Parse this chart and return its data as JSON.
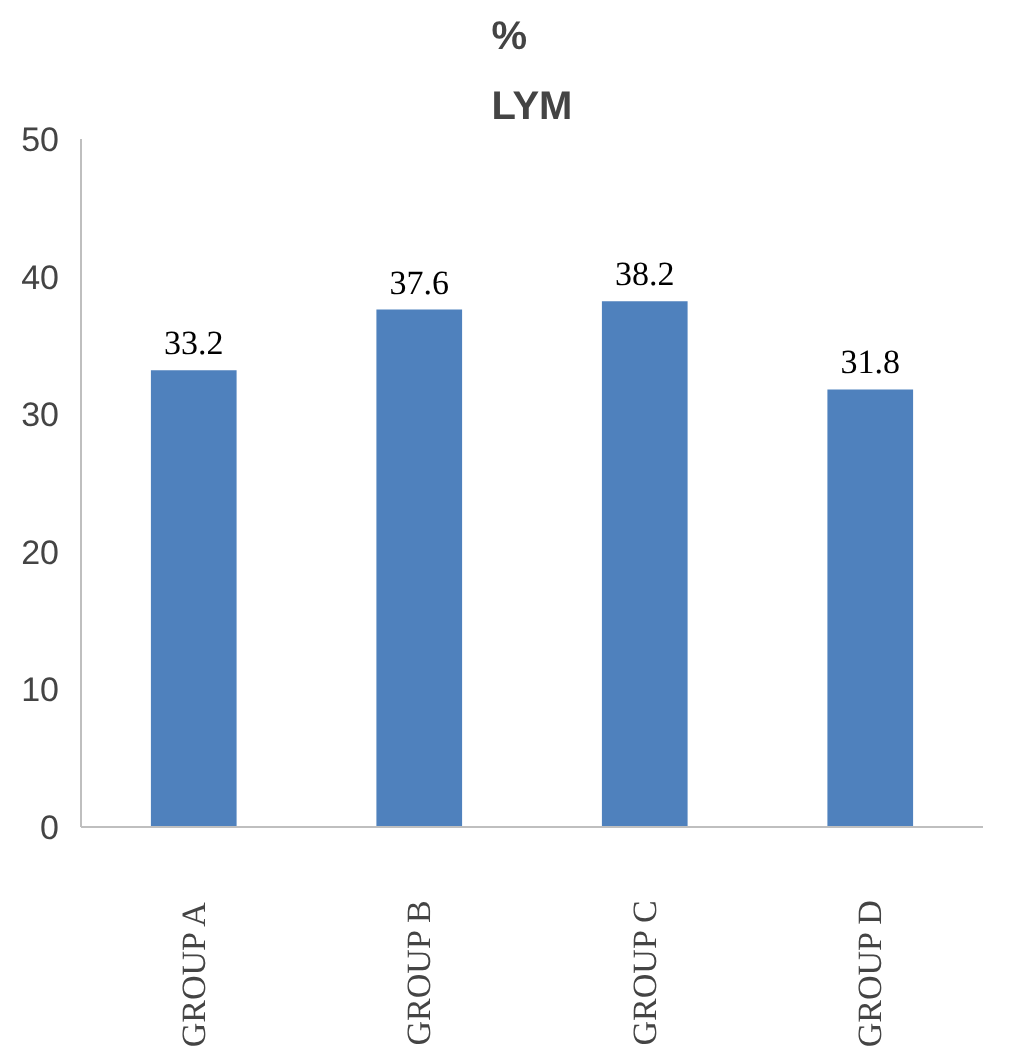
{
  "chart_data": {
    "type": "bar",
    "title": "%\nLYM",
    "categories": [
      "GROUP A",
      "GROUP B",
      "GROUP C",
      "GROUP D"
    ],
    "values": [
      33.2,
      37.6,
      38.2,
      31.8
    ],
    "color": "#4f81bd",
    "ylim": [
      0,
      50
    ],
    "yticks": [
      0,
      10,
      20,
      30,
      40,
      50
    ],
    "grid": false,
    "data_labels": true
  }
}
